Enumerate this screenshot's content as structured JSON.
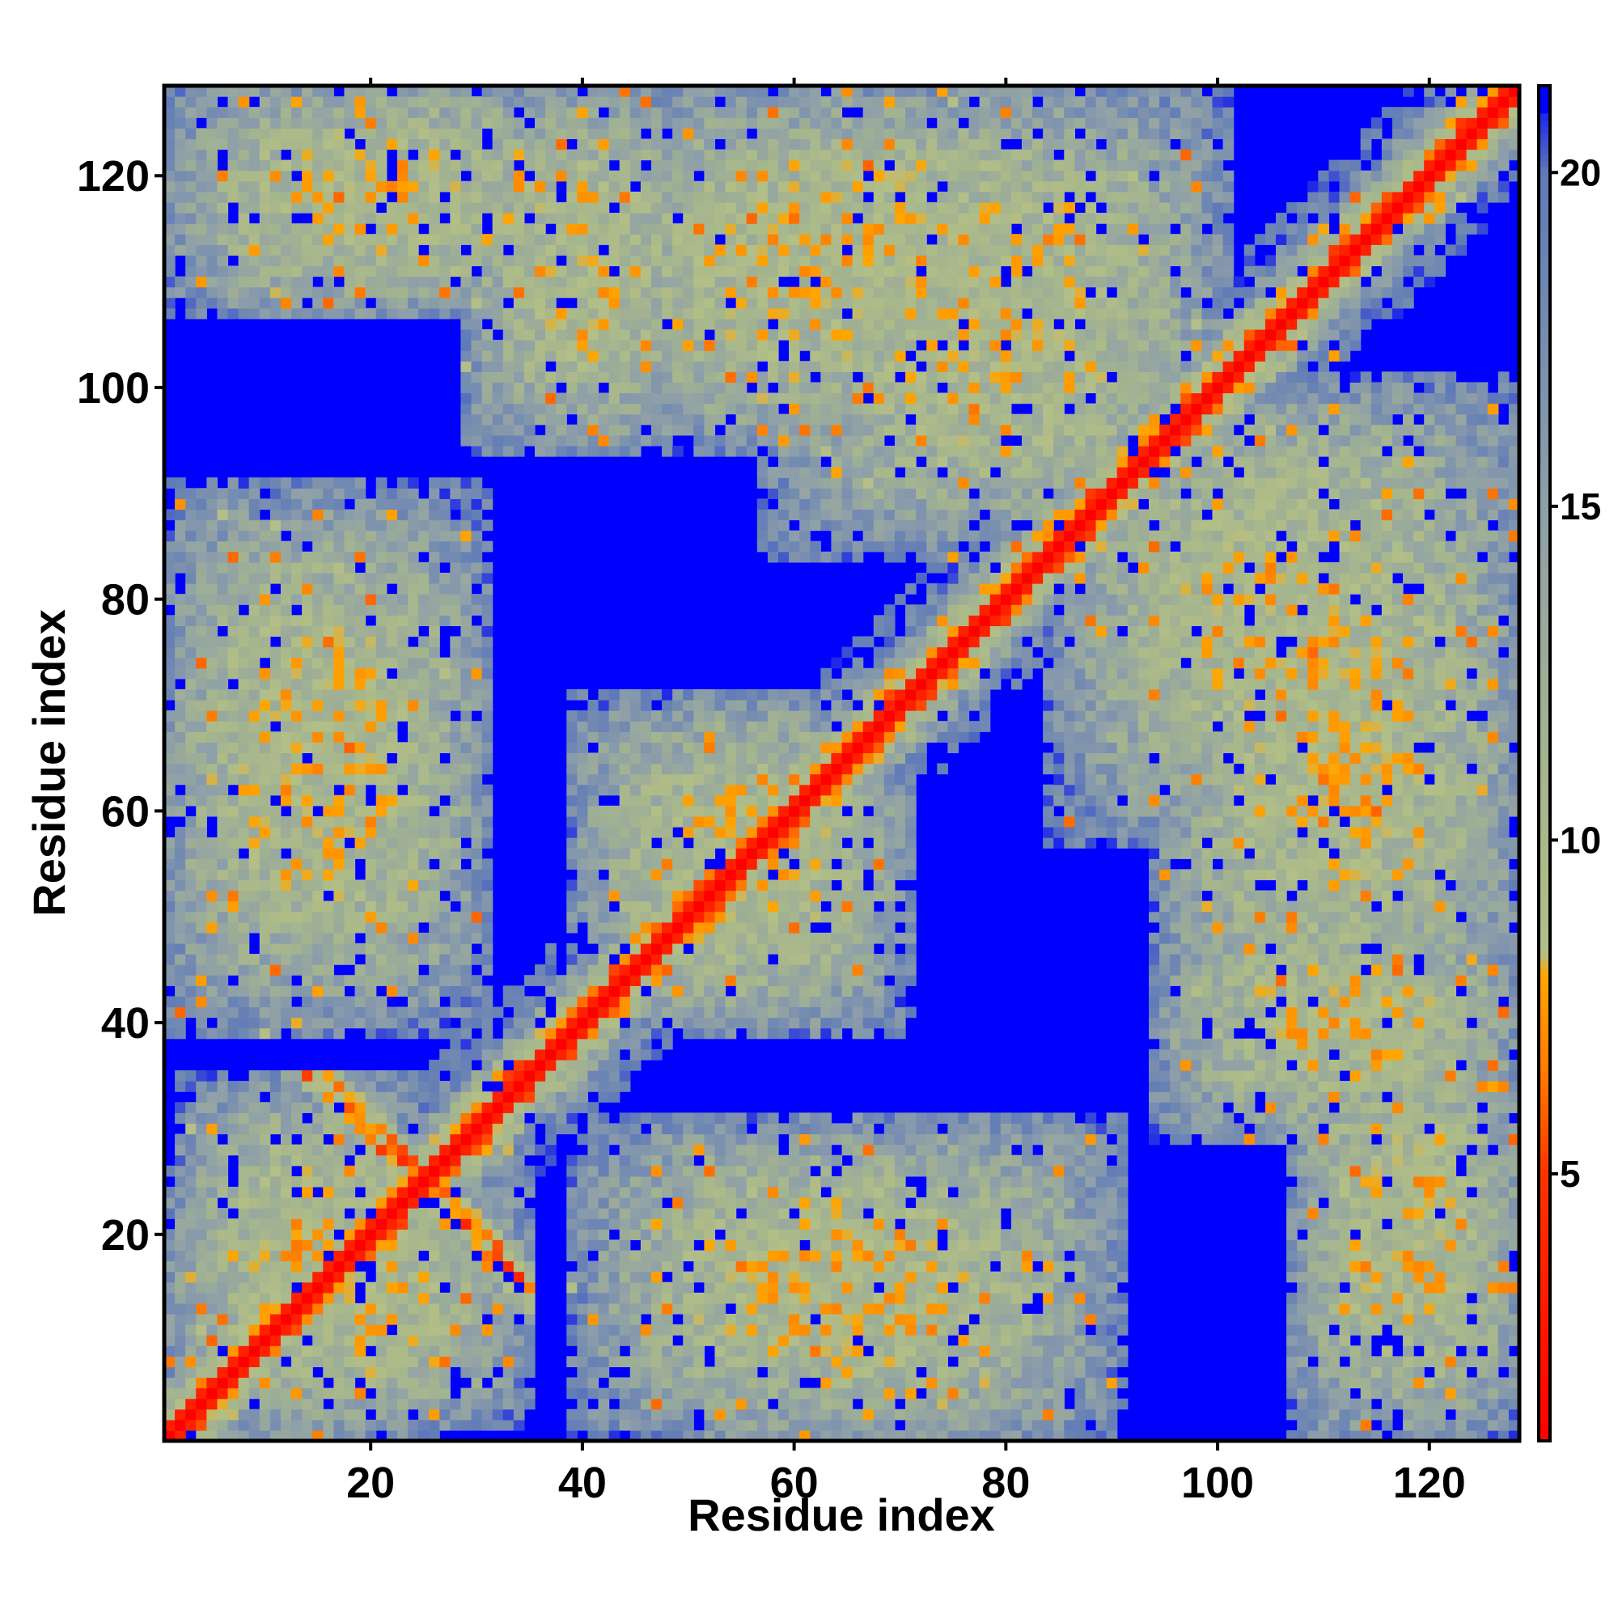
{
  "chart_data": {
    "type": "heatmap",
    "title": "",
    "xlabel": "Residue index",
    "ylabel": "Residue index",
    "n": 128,
    "xlim": [
      1,
      128
    ],
    "ylim": [
      1,
      128
    ],
    "x_ticks": [
      20,
      40,
      60,
      80,
      100,
      120
    ],
    "y_ticks": [
      20,
      40,
      60,
      80,
      100,
      120
    ],
    "x_tick_labels": [
      "20",
      "40",
      "60",
      "80",
      "100",
      "120"
    ],
    "y_tick_labels": [
      "20",
      "40",
      "60",
      "80",
      "100",
      "120"
    ],
    "colorbar": {
      "min": 1,
      "max": 21.3,
      "ticks": [
        5,
        10,
        15,
        20
      ],
      "tick_labels": [
        "5",
        "10",
        "15",
        "20"
      ],
      "placement": "right"
    },
    "colorscale": [
      {
        "value": 1,
        "color": "#ff0000"
      },
      {
        "value": 5,
        "color": "#ff3300"
      },
      {
        "value": 6.5,
        "color": "#ff7a00"
      },
      {
        "value": 8,
        "color": "#ffa500"
      },
      {
        "value": 8.3,
        "color": "#b3bf86"
      },
      {
        "value": 11,
        "color": "#a5b58e"
      },
      {
        "value": 15,
        "color": "#8fa0a8"
      },
      {
        "value": 20,
        "color": "#5f7ab8"
      },
      {
        "value": 21.3,
        "color": "#0000ff"
      }
    ],
    "background_color": "#0000ff",
    "diagonal_color": "#ff0000",
    "structural_features": {
      "main_diagonal": {
        "from": 1,
        "to": 128
      },
      "antiparallel_bands": [
        {
          "center_sum": 50,
          "from_i": 1,
          "to_i": 34,
          "color": "#ffa500"
        }
      ],
      "contact_regions": [
        {
          "i_range": [
            1,
            34
          ],
          "j_range": [
            3,
            25
          ],
          "intensity": "medium"
        },
        {
          "i_range": [
            1,
            30
          ],
          "j_range": [
            40,
            90
          ],
          "intensity": "medium"
        },
        {
          "i_range": [
            30,
            50
          ],
          "j_range": [
            95,
            128
          ],
          "intensity": "medium"
        },
        {
          "i_range": [
            58,
            100
          ],
          "j_range": [
            85,
            128
          ],
          "intensity": "medium"
        },
        {
          "i_range": [
            95,
            128
          ],
          "j_range": [
            35,
            100
          ],
          "intensity": "medium"
        },
        {
          "i_range": [
            108,
            128
          ],
          "j_range": [
            1,
            40
          ],
          "intensity": "medium"
        },
        {
          "i_range": [
            44,
            82
          ],
          "j_range": [
            1,
            26
          ],
          "intensity": "low"
        },
        {
          "i_range": [
            40,
            70
          ],
          "j_range": [
            40,
            70
          ],
          "intensity": "medium"
        }
      ]
    }
  }
}
